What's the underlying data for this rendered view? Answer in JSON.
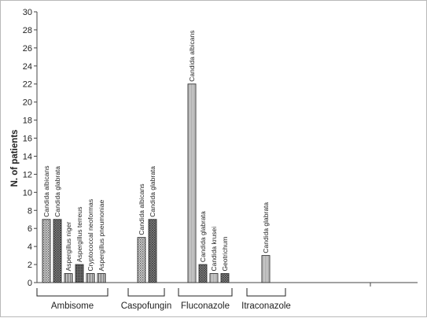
{
  "chart_data": {
    "type": "bar",
    "ylabel": "N. of patients",
    "ylim": [
      0,
      30
    ],
    "y_ticks": [
      "0",
      "2",
      "4",
      "6",
      "8",
      "10",
      "12",
      "14",
      "16",
      "18",
      "20",
      "22",
      "24",
      "26",
      "28",
      "30"
    ],
    "groups": [
      {
        "name": "Ambisome",
        "bars": [
          {
            "label": "Candida albicans",
            "value": 7,
            "pattern": "dots"
          },
          {
            "label": "Candida glabrata",
            "value": 7,
            "pattern": "hatch"
          },
          {
            "label": "Aspergillus niger",
            "value": 1,
            "pattern": "vlines"
          },
          {
            "label": "Aspergillus terreus",
            "value": 2,
            "pattern": "dark"
          },
          {
            "label": "Cryptococcal neoformas",
            "value": 1,
            "pattern": "vlines"
          },
          {
            "label": "Aspergillus pneumoniae",
            "value": 1,
            "pattern": "vlines"
          }
        ]
      },
      {
        "name": "Caspofungin",
        "bars": [
          {
            "label": "Candida albicans",
            "value": 5,
            "pattern": "dots"
          },
          {
            "label": "Candida glabrata",
            "value": 7,
            "pattern": "hatch"
          }
        ]
      },
      {
        "name": "Fluconazole",
        "bars": [
          {
            "label": "Candida albicans",
            "value": 22,
            "pattern": "light"
          },
          {
            "label": "Candida glabrata",
            "value": 2,
            "pattern": "hatch"
          },
          {
            "label": "Candida krusei",
            "value": 1,
            "pattern": "light"
          },
          {
            "label": "Geotrichum",
            "value": 1,
            "pattern": "hatch"
          }
        ]
      },
      {
        "name": "Itraconazole",
        "bars": [
          {
            "label": "Candida glabrata",
            "value": 3,
            "pattern": "light"
          }
        ]
      }
    ]
  }
}
